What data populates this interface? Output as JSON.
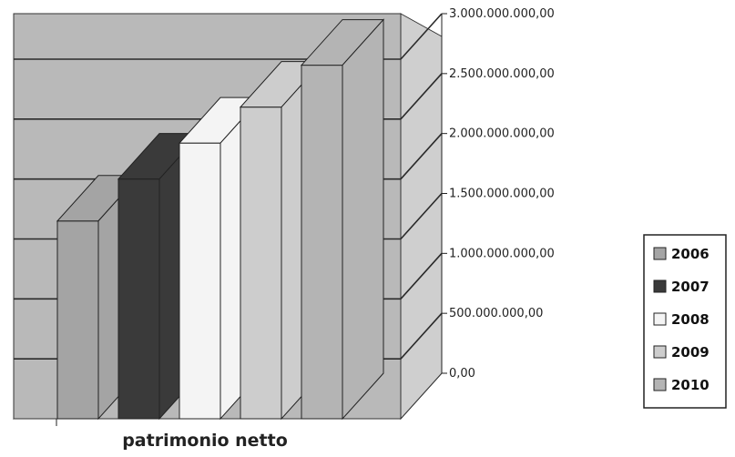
{
  "chart_data": {
    "type": "bar",
    "categories": [
      "patrimonio netto"
    ],
    "series": [
      {
        "name": "2006",
        "values": [
          1650000000
        ]
      },
      {
        "name": "2007",
        "values": [
          2000000000
        ]
      },
      {
        "name": "2008",
        "values": [
          2300000000
        ]
      },
      {
        "name": "2009",
        "values": [
          2600000000
        ]
      },
      {
        "name": "2010",
        "values": [
          2950000000
        ]
      }
    ],
    "ylim": [
      0,
      3000000000
    ],
    "yticks": [
      "0,00",
      "500.000.000,00",
      "1.000.000.000,00",
      "1.500.000.000,00",
      "2.000.000.000,00",
      "2.500.000.000,00",
      "3.000.000.000,00"
    ],
    "grid": true,
    "legend_position": "right",
    "colors": {
      "2006": "#a4a4a4",
      "2007": "#3a3a3a",
      "2008": "#f4f4f4",
      "2009": "#cdcdcd",
      "2010": "#b4b4b4",
      "back_wall": "#b9b9b9",
      "side_wall": "#cfcfcf",
      "floor": "#9a9a9a"
    }
  }
}
